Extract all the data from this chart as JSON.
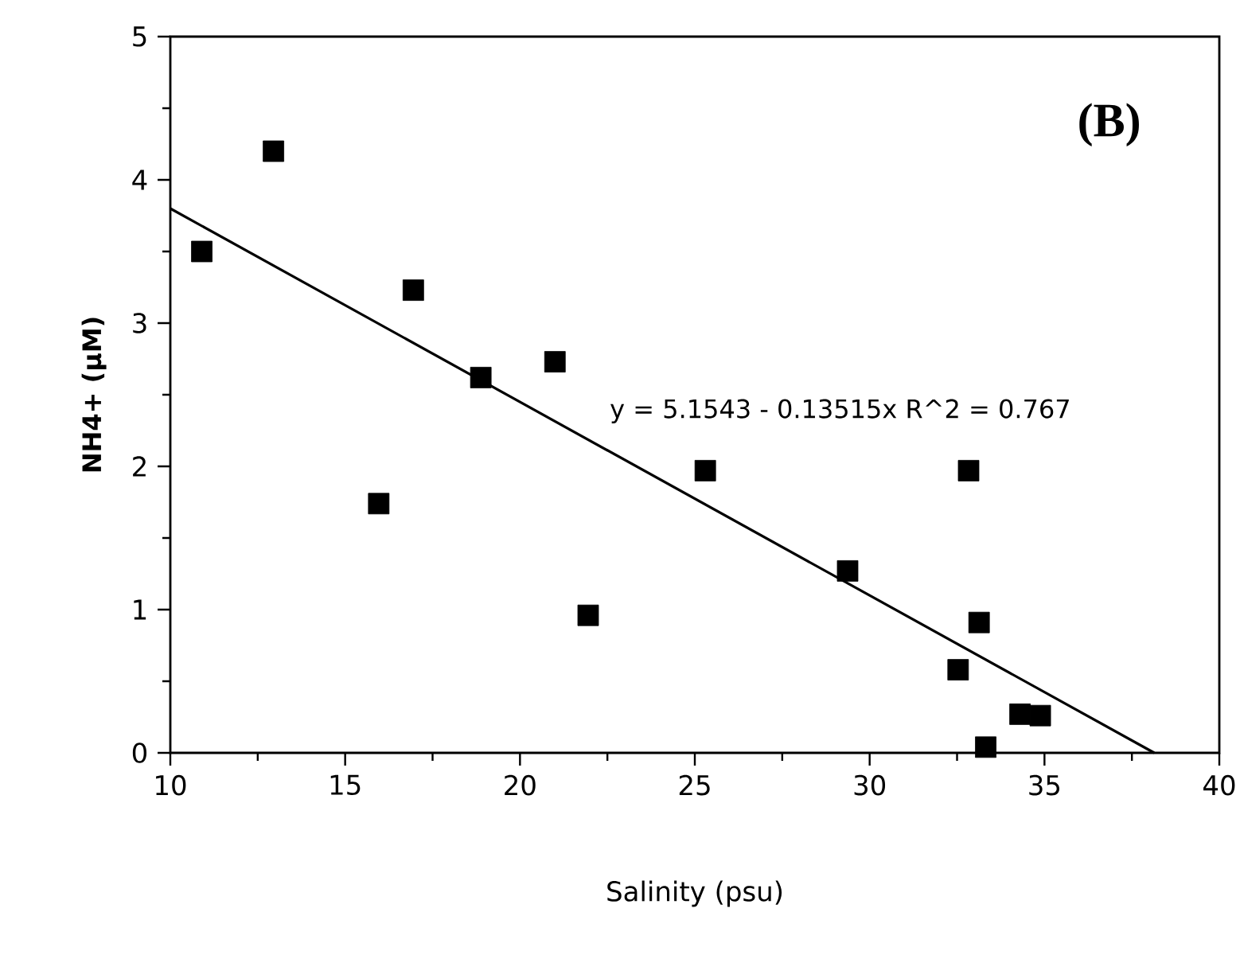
{
  "chart_data": {
    "type": "scatter",
    "xlabel": "Salinity  (psu)",
    "ylabel": "NH4+ (µM)",
    "xlim": [
      10,
      40
    ],
    "ylim": [
      0,
      5
    ],
    "xticks": [
      10,
      15,
      20,
      25,
      30,
      35,
      40
    ],
    "yticks": [
      0,
      1,
      2,
      3,
      4,
      5
    ],
    "grid": false,
    "annotations": [
      "(B)",
      "y = 5.1543 - 0.13515x   R^2 = 0.767"
    ],
    "series": [
      {
        "marker": "square",
        "color": "#000000",
        "x": [
          10.9,
          12.95,
          16.95,
          15.96,
          18.88,
          21.0,
          21.95,
          25.3,
          29.37,
          32.83,
          33.13,
          32.53,
          33.32,
          34.3,
          34.88
        ],
        "values": [
          3.5,
          4.2,
          3.23,
          1.74,
          2.62,
          2.73,
          0.96,
          1.97,
          1.27,
          1.97,
          0.91,
          0.58,
          0.04,
          0.27,
          0.26
        ]
      },
      {
        "type": "line",
        "marker": "none",
        "line_style": "solid",
        "color": "#000000",
        "x": [
          10,
          38.14
        ],
        "values": [
          3.8,
          0
        ]
      }
    ]
  }
}
